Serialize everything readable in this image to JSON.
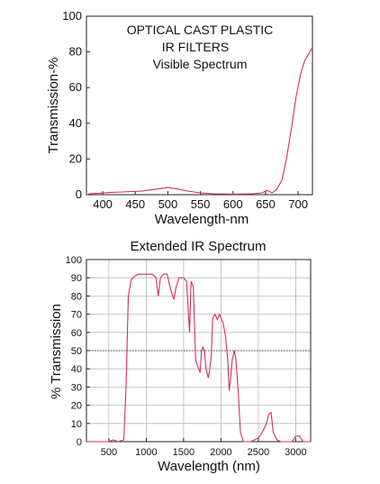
{
  "chart_data": [
    {
      "type": "line",
      "title_lines": [
        "OPTICAL CAST PLASTIC",
        "IR FILTERS",
        "Visible Spectrum"
      ],
      "xlabel": "Wavelength-nm",
      "ylabel": "Transmission-%",
      "xlim": [
        375,
        722
      ],
      "ylim": [
        0,
        100
      ],
      "xticks": [
        400,
        450,
        500,
        550,
        600,
        650,
        700
      ],
      "yticks": [
        0,
        20,
        40,
        60,
        80,
        100
      ],
      "grid": false,
      "series": [
        {
          "color": "#d0305a",
          "x": [
            378,
            395,
            410,
            430,
            460,
            480,
            500,
            515,
            530,
            550,
            570,
            600,
            630,
            645,
            652,
            660,
            667,
            675,
            682,
            690,
            697,
            704,
            710,
            718,
            721
          ],
          "y": [
            0.5,
            0.8,
            1.2,
            1.5,
            2,
            3,
            4,
            3.2,
            2,
            1,
            0.5,
            0.3,
            0.5,
            1,
            2.5,
            1,
            3,
            8,
            20,
            38,
            55,
            68,
            75,
            80,
            82
          ]
        }
      ]
    },
    {
      "type": "line",
      "title": "Extended IR Spectrum",
      "xlabel": "Wavelength (nm)",
      "ylabel": "% Transmission",
      "xlim": [
        200,
        3200
      ],
      "ylim": [
        0,
        100
      ],
      "xticks": [
        500,
        1000,
        1500,
        2000,
        2500,
        3000
      ],
      "yticks": [
        0,
        10,
        20,
        30,
        40,
        50,
        60,
        70,
        80,
        90,
        100
      ],
      "grid": true,
      "reference_line_y": 50,
      "series": [
        {
          "color": "#d0305a",
          "x": [
            200,
            500,
            560,
            620,
            700,
            730,
            760,
            800,
            850,
            900,
            1000,
            1080,
            1130,
            1160,
            1190,
            1230,
            1280,
            1330,
            1370,
            1400,
            1440,
            1500,
            1540,
            1580,
            1600,
            1630,
            1660,
            1700,
            1720,
            1740,
            1760,
            1780,
            1800,
            1830,
            1850,
            1870,
            1890,
            1920,
            1950,
            1980,
            2000,
            2030,
            2060,
            2090,
            2110,
            2130,
            2150,
            2180,
            2200,
            2230,
            2260,
            2300,
            2400,
            2500,
            2550,
            2600,
            2640,
            2670,
            2700,
            2750,
            2800,
            2900,
            2950,
            3000,
            3050,
            3100,
            3200
          ],
          "y": [
            0,
            0,
            1,
            0,
            1,
            30,
            80,
            89,
            91,
            92,
            92,
            92,
            90,
            80,
            90,
            92,
            92,
            83,
            78,
            85,
            90,
            90,
            88,
            60,
            88,
            85,
            45,
            40,
            38,
            50,
            52,
            50,
            40,
            35,
            40,
            47,
            68,
            70,
            67,
            70,
            68,
            65,
            58,
            45,
            28,
            35,
            45,
            50,
            45,
            28,
            5,
            0,
            0,
            2,
            5,
            9,
            15,
            16,
            5,
            1,
            0,
            0,
            0,
            3,
            3,
            0,
            0
          ]
        }
      ]
    }
  ]
}
